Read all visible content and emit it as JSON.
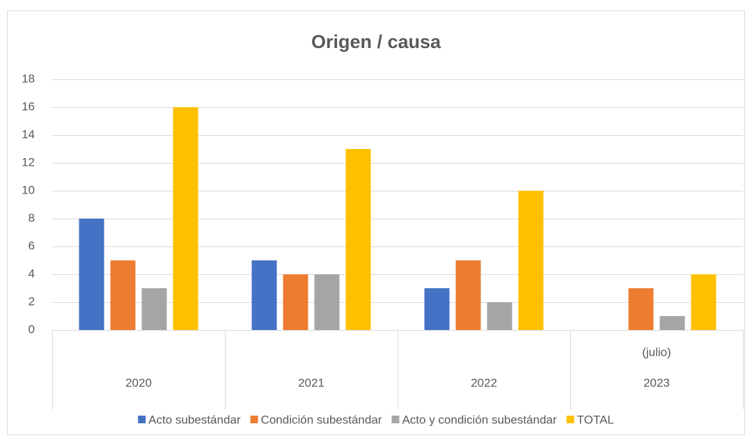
{
  "chart_data": {
    "type": "bar",
    "title": "Origen / causa",
    "categories": [
      "2020",
      "2021",
      "2022",
      "2023"
    ],
    "category_sublabels": [
      null,
      null,
      null,
      "(julio)"
    ],
    "series": [
      {
        "name": "Acto subestándar",
        "color": "#4472c4",
        "values": [
          8,
          5,
          3,
          0
        ]
      },
      {
        "name": "Condición subestándar",
        "color": "#ed7d31",
        "values": [
          5,
          4,
          5,
          3
        ]
      },
      {
        "name": "Acto y condición subestándar",
        "color": "#a5a5a5",
        "values": [
          3,
          4,
          2,
          1
        ]
      },
      {
        "name": "TOTAL",
        "color": "#ffc000",
        "values": [
          16,
          13,
          10,
          4
        ]
      }
    ],
    "ylim": [
      0,
      18
    ],
    "yticks": [
      0,
      2,
      4,
      6,
      8,
      10,
      12,
      14,
      16,
      18
    ],
    "grid": true,
    "legend": "bottom"
  }
}
